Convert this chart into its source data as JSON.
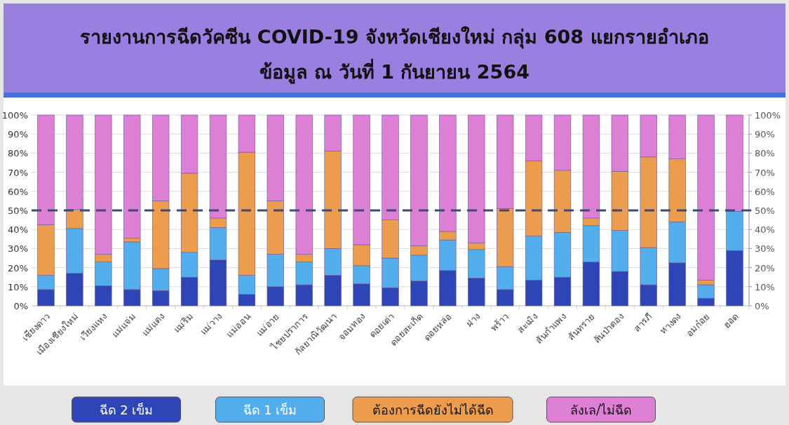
{
  "chart_data": {
    "type": "bar",
    "title": "รายงานการฉีดวัคซีน COVID-19 จังหวัดเชียงใหม่ กลุ่ม 608 แยกรายอำเภอ",
    "subtitle": "ข้อมูล ณ วันที่ 1 กันยายน 2564",
    "categories": [
      "เชียงดาว",
      "เมืองเชียงใหม่",
      "เวียงแหง",
      "แม่แจ่ม",
      "แม่แตง",
      "แม่ริม",
      "แม่วาง",
      "แม่ออน",
      "แม่อาย",
      "ไชยปราการ",
      "กัลยาณิวัฒนา",
      "จอมทอง",
      "ดอยเต่า",
      "ดอยสะเก็ด",
      "ดอยหล่อ",
      "ฝาง",
      "พร้าว",
      "สะเมิง",
      "สันกำแพง",
      "สันทราย",
      "สันป่าตอง",
      "สารภี",
      "หางดง",
      "อมก๋อย",
      "ฮอด"
    ],
    "stacked": true,
    "series": [
      {
        "name": "ฉีด 2 เข็ม",
        "color": "#2e45b8",
        "values": [
          8.5,
          17,
          10.5,
          8.5,
          8,
          15,
          24,
          6,
          10,
          11,
          16,
          11.5,
          9.5,
          13,
          18.5,
          14.5,
          8.5,
          13.5,
          15,
          23,
          18,
          11,
          22.5,
          4,
          29
        ]
      },
      {
        "name": "ฉีด 1 เข็ม",
        "color": "#52aeec",
        "values": [
          7.5,
          23.5,
          12.5,
          25,
          11.5,
          13,
          17,
          10,
          17,
          12,
          14,
          9.5,
          15.5,
          13.5,
          16,
          15,
          12,
          23,
          23.5,
          19,
          21.5,
          19.5,
          21.5,
          7,
          20.5
        ]
      },
      {
        "name": "ต้องการฉีดยังไม่ได้ฉีด",
        "color": "#eb9c4c",
        "values": [
          26.5,
          10,
          4,
          2,
          35.5,
          41.5,
          5,
          64.5,
          28,
          4,
          51,
          11,
          20,
          5,
          4.5,
          3.5,
          30.5,
          39.5,
          32.5,
          4,
          31,
          47.5,
          33,
          2.5,
          null
        ]
      },
      {
        "name": "ลังเล/ไม่ฉีด",
        "color": "#de7fd6",
        "values": [
          57.5,
          49.5,
          73,
          64.5,
          45,
          30.5,
          54,
          19.5,
          45,
          73,
          19,
          68,
          55,
          68.5,
          61,
          67,
          49,
          24,
          29,
          54,
          29.5,
          22,
          23,
          86.5,
          50.5
        ]
      }
    ],
    "ylim": [
      0,
      100
    ],
    "yticks": [
      {
        "value": 0,
        "label": "0%"
      },
      {
        "value": 10,
        "label": "10%"
      },
      {
        "value": 20,
        "label": "20%"
      },
      {
        "value": 30,
        "label": "30%"
      },
      {
        "value": 40,
        "label": "40%"
      },
      {
        "value": 50,
        "label": "50%"
      },
      {
        "value": 60,
        "label": "60%"
      },
      {
        "value": 70,
        "label": "70%"
      },
      {
        "value": 80,
        "label": "80%"
      },
      {
        "value": 90,
        "label": "90%"
      },
      {
        "value": 100,
        "label": "100%"
      }
    ],
    "y2lim": [
      0,
      100
    ],
    "y2ticks": [
      {
        "value": 0,
        "label": "0%"
      },
      {
        "value": 10,
        "label": "10%"
      },
      {
        "value": 20,
        "label": "20%"
      },
      {
        "value": 30,
        "label": "30%"
      },
      {
        "value": 40,
        "label": "40%"
      },
      {
        "value": 50,
        "label": "50%"
      },
      {
        "value": 60,
        "label": "60%"
      },
      {
        "value": 70,
        "label": "70%"
      },
      {
        "value": 80,
        "label": "80%"
      },
      {
        "value": 90,
        "label": "90%"
      },
      {
        "value": 100,
        "label": "100%"
      }
    ],
    "ref_lines": [
      {
        "axis": "y",
        "value": 50,
        "color": "#3b4a78",
        "line_style": "dashed"
      }
    ],
    "grid": "y",
    "legend": "bottom"
  }
}
